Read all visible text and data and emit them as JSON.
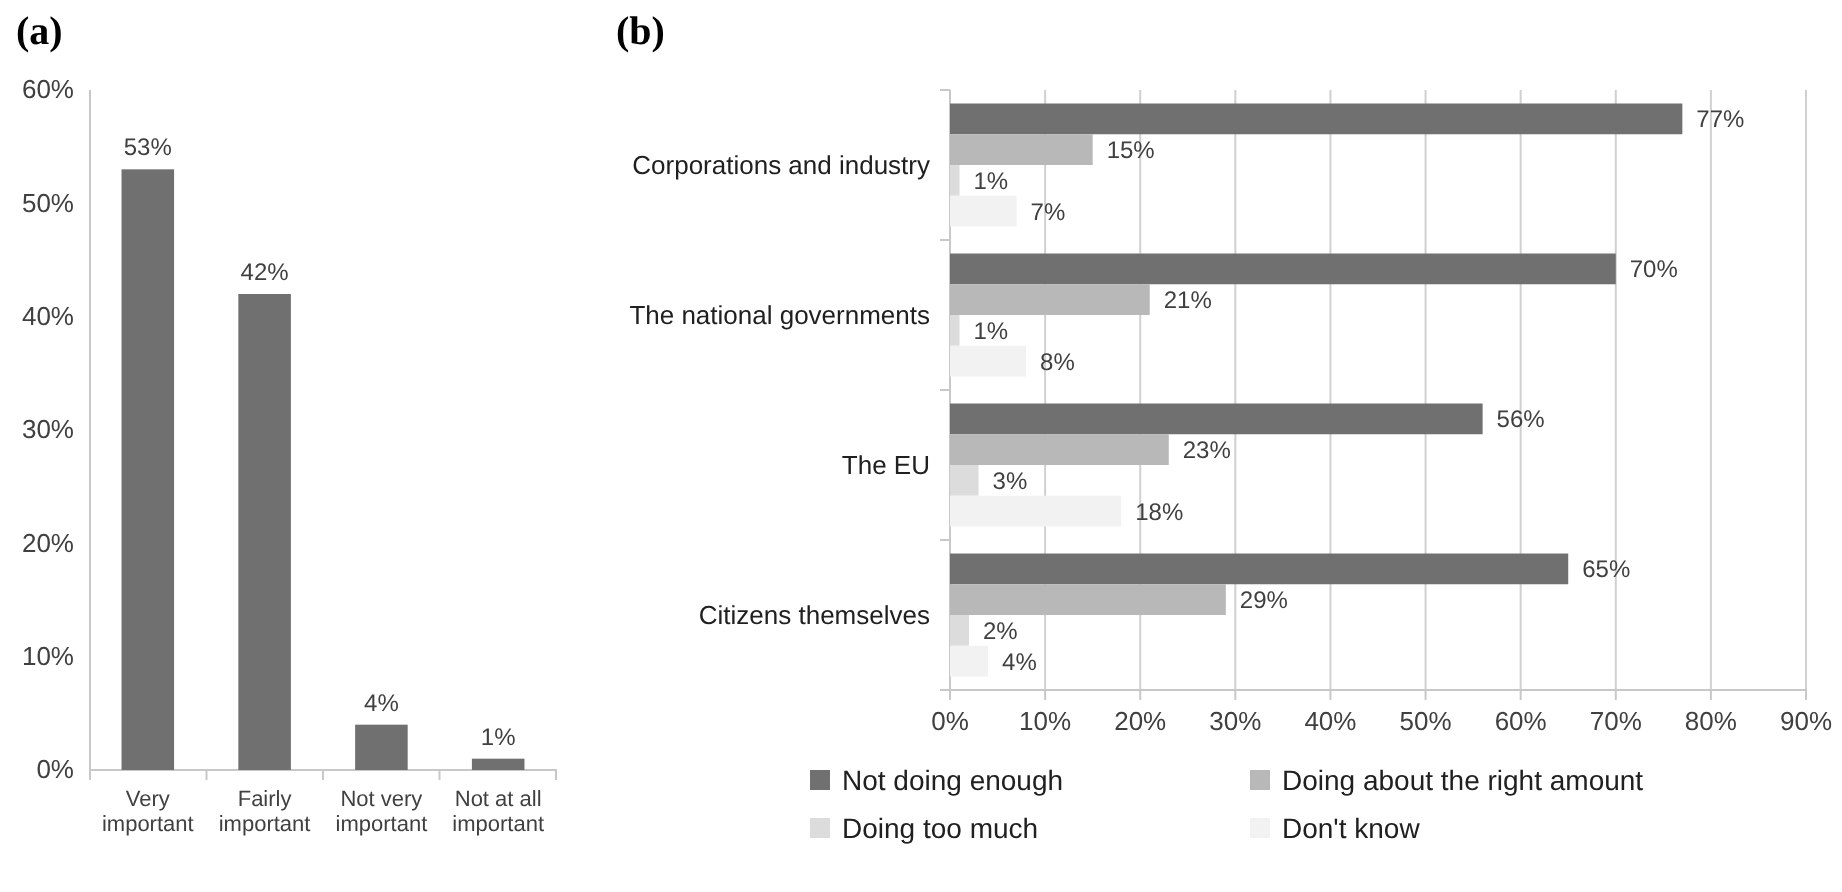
{
  "chart_data": [
    {
      "type": "bar",
      "title": "(a)",
      "categories": [
        "Very important",
        "Fairly important",
        "Not very important",
        "Not at all important"
      ],
      "values": [
        53,
        42,
        4,
        1
      ],
      "value_labels": [
        "53%",
        "42%",
        "4%",
        "1%"
      ],
      "color": "#707070",
      "ylim": [
        0,
        60
      ],
      "yticks": [
        {
          "value": 0,
          "label": "0%"
        },
        {
          "value": 10,
          "label": "10%"
        },
        {
          "value": 20,
          "label": "20%"
        },
        {
          "value": 30,
          "label": "30%"
        },
        {
          "value": 40,
          "label": "40%"
        },
        {
          "value": 50,
          "label": "50%"
        },
        {
          "value": 60,
          "label": "60%"
        }
      ],
      "grid": false
    },
    {
      "type": "bar",
      "title": "(b)",
      "orientation": "horizontal",
      "categories": [
        "Corporations and industry",
        "The national governments",
        "The EU",
        "Citizens themselves"
      ],
      "series": [
        {
          "name": "Not doing enough",
          "color": "#707070",
          "values": [
            77,
            70,
            56,
            65
          ],
          "value_labels": [
            "77%",
            "70%",
            "56%",
            "65%"
          ]
        },
        {
          "name": "Doing about the right amount",
          "color": "#b8b8b8",
          "values": [
            15,
            21,
            23,
            29
          ],
          "value_labels": [
            "15%",
            "21%",
            "23%",
            "29%"
          ]
        },
        {
          "name": "Doing too much",
          "color": "#dcdcdc",
          "values": [
            1,
            1,
            3,
            2
          ],
          "value_labels": [
            "1%",
            "1%",
            "3%",
            "2%"
          ]
        },
        {
          "name": "Don't know",
          "color": "#f2f2f2",
          "values": [
            7,
            8,
            18,
            4
          ],
          "value_labels": [
            "7%",
            "8%",
            "18%",
            "4%"
          ]
        }
      ],
      "xlim": [
        0,
        90
      ],
      "xticks": [
        {
          "value": 0,
          "label": "0%"
        },
        {
          "value": 10,
          "label": "10%"
        },
        {
          "value": 20,
          "label": "20%"
        },
        {
          "value": 30,
          "label": "30%"
        },
        {
          "value": 40,
          "label": "40%"
        },
        {
          "value": 50,
          "label": "50%"
        },
        {
          "value": 60,
          "label": "60%"
        },
        {
          "value": 70,
          "label": "70%"
        },
        {
          "value": 80,
          "label": "80%"
        },
        {
          "value": 90,
          "label": "90%"
        }
      ],
      "grid": "x",
      "legend": "bottom"
    }
  ]
}
